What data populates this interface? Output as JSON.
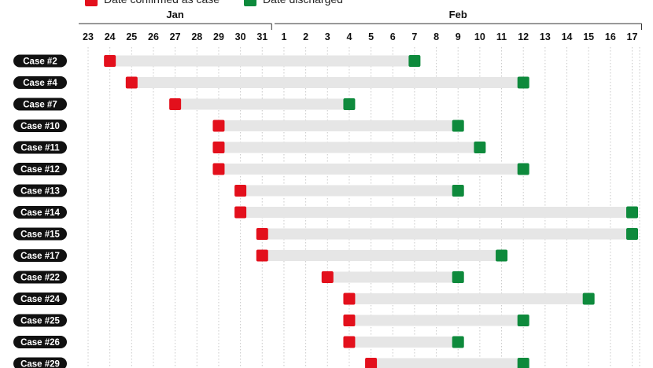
{
  "chart_data": {
    "type": "timeline",
    "legend": [
      {
        "label": "Date confirmed as case",
        "color": "#e3101c"
      },
      {
        "label": "Date discharged",
        "color": "#0e8a3c"
      }
    ],
    "months": [
      "Jan",
      "Feb"
    ],
    "x_ticks": [
      "23",
      "24",
      "25",
      "26",
      "27",
      "28",
      "29",
      "30",
      "31",
      "1",
      "2",
      "3",
      "4",
      "5",
      "6",
      "7",
      "8",
      "9",
      "10",
      "11",
      "12",
      "13",
      "14",
      "15",
      "16",
      "17"
    ],
    "x_range": [
      "2020-01-23",
      "2020-02-17"
    ],
    "bar_color": "#e6e6e6",
    "grid": "vertical dotted",
    "cases": [
      {
        "label": "Case #2",
        "confirmed": "2020-01-24",
        "discharged": "2020-02-07"
      },
      {
        "label": "Case #4",
        "confirmed": "2020-01-25",
        "discharged": "2020-02-12"
      },
      {
        "label": "Case #7",
        "confirmed": "2020-01-27",
        "discharged": "2020-02-04"
      },
      {
        "label": "Case #10",
        "confirmed": "2020-01-29",
        "discharged": "2020-02-09"
      },
      {
        "label": "Case #11",
        "confirmed": "2020-01-29",
        "discharged": "2020-02-10"
      },
      {
        "label": "Case #12",
        "confirmed": "2020-01-29",
        "discharged": "2020-02-12"
      },
      {
        "label": "Case #13",
        "confirmed": "2020-01-30",
        "discharged": "2020-02-09"
      },
      {
        "label": "Case #14",
        "confirmed": "2020-01-30",
        "discharged": "2020-02-17"
      },
      {
        "label": "Case #15",
        "confirmed": "2020-01-31",
        "discharged": "2020-02-17"
      },
      {
        "label": "Case #17",
        "confirmed": "2020-01-31",
        "discharged": "2020-02-11"
      },
      {
        "label": "Case #22",
        "confirmed": "2020-02-03",
        "discharged": "2020-02-09"
      },
      {
        "label": "Case #24",
        "confirmed": "2020-02-04",
        "discharged": "2020-02-15"
      },
      {
        "label": "Case #25",
        "confirmed": "2020-02-04",
        "discharged": "2020-02-12"
      },
      {
        "label": "Case #26",
        "confirmed": "2020-02-04",
        "discharged": "2020-02-09"
      },
      {
        "label": "Case #29",
        "confirmed": "2020-02-05",
        "discharged": "2020-02-12"
      }
    ]
  }
}
